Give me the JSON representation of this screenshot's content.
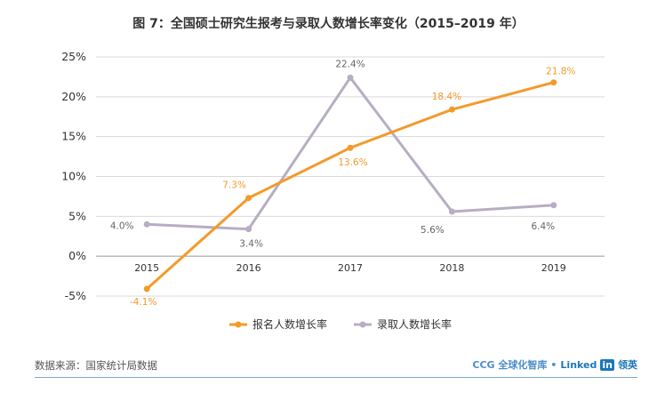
{
  "title": "图 7：全国硕士研究生报考与录取人数增长率变化（2015–2019 年）",
  "source": "数据来源：国家统计局数据",
  "logo": {
    "ccg": "CCG 全球化智库",
    "sep": "•",
    "linked": "Linked",
    "in": "in",
    "cn": "领英"
  },
  "colors": {
    "apply": "#f39a2a",
    "admit": "#b7adc4",
    "grid": "#d9d9d9",
    "axis": "#999999"
  },
  "chart_data": {
    "type": "line",
    "categories": [
      "2015",
      "2016",
      "2017",
      "2018",
      "2019"
    ],
    "series": [
      {
        "name": "报名人数增长率",
        "values": [
          -4.1,
          7.3,
          13.6,
          18.4,
          21.8
        ],
        "labels": [
          "-4.1%",
          "7.3%",
          "13.6%",
          "18.4%",
          "21.8%"
        ]
      },
      {
        "name": "录取人数增长率",
        "values": [
          4.0,
          3.4,
          22.4,
          5.6,
          6.4
        ],
        "labels": [
          "4.0%",
          "3.4%",
          "22.4%",
          "5.6%",
          "6.4%"
        ]
      }
    ],
    "yticks": [
      "25%",
      "20%",
      "15%",
      "10%",
      "5%",
      "0%",
      "-5%"
    ],
    "ytick_values": [
      25,
      20,
      15,
      10,
      5,
      0,
      -5
    ],
    "ylim": [
      -5,
      25
    ],
    "grid": true,
    "legend": "bottom"
  }
}
